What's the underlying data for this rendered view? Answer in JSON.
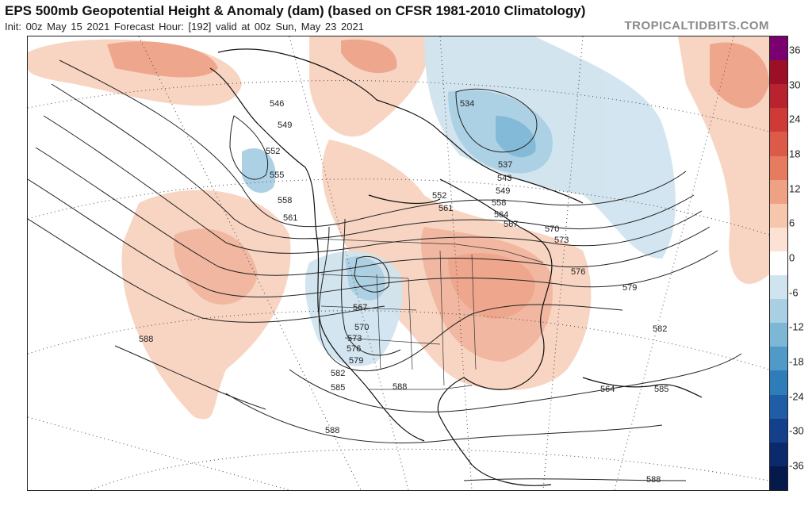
{
  "header": {
    "title": "EPS 500mb Geopotential Height & Anomaly (dam) (based on CFSR 1981-2010 Climatology)",
    "subtitle": "Init: 00z May 15 2021   Forecast Hour: [192]   valid at 00z Sun, May 23 2021",
    "brand": "TROPICALTIDBITS.COM"
  },
  "map": {
    "region": "North America",
    "height_contour_labels": [
      "546",
      "549",
      "552",
      "555",
      "558",
      "561",
      "534",
      "537",
      "543",
      "549",
      "552",
      "558",
      "561",
      "564",
      "567",
      "570",
      "573",
      "576",
      "579",
      "582",
      "585",
      "588",
      "564",
      "567",
      "570",
      "573",
      "576",
      "579",
      "582",
      "585",
      "588",
      "588",
      "588"
    ]
  },
  "colorbar": {
    "ticks": [
      "36",
      "30",
      "24",
      "18",
      "12",
      "6",
      "0",
      "-6",
      "-12",
      "-18",
      "-24",
      "-30",
      "-36"
    ],
    "colors": [
      "#7a0070",
      "#9c1027",
      "#b8232f",
      "#cf3a36",
      "#dc5a48",
      "#e67b60",
      "#efa184",
      "#f6c6ad",
      "#fbe2d4",
      "#ffffff",
      "#d0e4ef",
      "#a9cfe3",
      "#7db7d6",
      "#519ac8",
      "#2f7db8",
      "#1f5ea6",
      "#143f8a",
      "#0b2a6c",
      "#051a4a"
    ]
  }
}
